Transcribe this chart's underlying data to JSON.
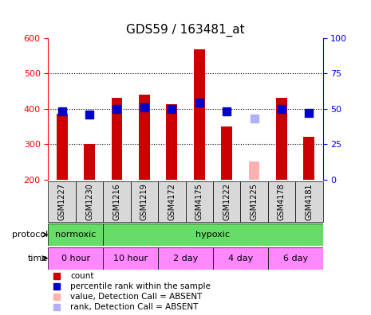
{
  "title": "GDS59 / 163481_at",
  "samples": [
    "GSM1227",
    "GSM1230",
    "GSM1216",
    "GSM1219",
    "GSM4172",
    "GSM4175",
    "GSM1222",
    "GSM1225",
    "GSM4178",
    "GSM4181"
  ],
  "counts": [
    385,
    300,
    430,
    440,
    413,
    567,
    350,
    null,
    430,
    320
  ],
  "ranks": [
    48,
    46,
    50,
    51,
    50,
    54,
    48,
    null,
    50,
    47
  ],
  "absent_count": [
    null,
    null,
    null,
    null,
    null,
    null,
    null,
    252,
    null,
    null
  ],
  "absent_rank": [
    null,
    null,
    null,
    null,
    null,
    null,
    null,
    43,
    null,
    null
  ],
  "ylim_left": [
    200,
    600
  ],
  "ylim_right": [
    0,
    100
  ],
  "yticks_left": [
    200,
    300,
    400,
    500,
    600
  ],
  "yticks_right": [
    0,
    25,
    50,
    75,
    100
  ],
  "bar_color": "#cc0000",
  "rank_color": "#0000cc",
  "absent_bar_color": "#ffb0b0",
  "absent_rank_color": "#b0b0ff",
  "protocol_color": "#66dd66",
  "time_color": "#ff88ff",
  "legend_labels": [
    "count",
    "percentile rank within the sample",
    "value, Detection Call = ABSENT",
    "rank, Detection Call = ABSENT"
  ],
  "legend_colors": [
    "#cc0000",
    "#0000cc",
    "#ffb0b0",
    "#b0b0ff"
  ],
  "bar_width": 0.4,
  "rank_marker_size": 7,
  "gridline_values": [
    300,
    400,
    500
  ]
}
